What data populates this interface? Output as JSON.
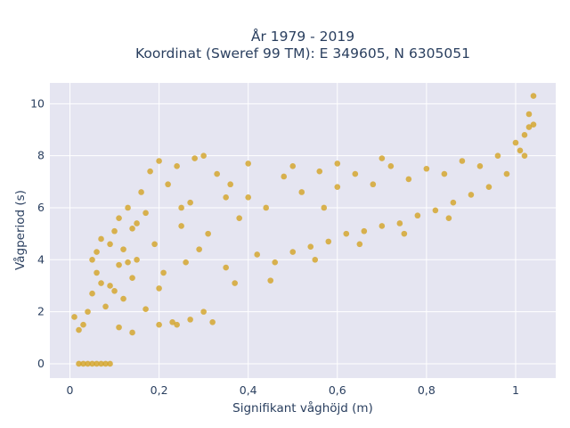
{
  "chart_data": {
    "type": "scatter",
    "title_lines": [
      "År 1979 - 2019",
      "Koordinat (Sweref 99 TM): E 349605, N 6305051"
    ],
    "xlabel": "Signifikant våghöjd (m)",
    "ylabel": "Vågperiod (s)",
    "xlim": [
      -0.045,
      1.09
    ],
    "ylim": [
      -0.55,
      10.8
    ],
    "x_ticks": [
      0,
      0.2,
      0.4,
      0.6,
      0.8,
      1
    ],
    "x_tick_labels": [
      "0",
      "0,2",
      "0,4",
      "0,6",
      "0,8",
      "1"
    ],
    "y_ticks": [
      0,
      2,
      4,
      6,
      8,
      10
    ],
    "y_tick_labels": [
      "0",
      "2",
      "4",
      "6",
      "8",
      "10"
    ],
    "grid": true,
    "legend": "none",
    "colors": {
      "marker": "#d4a21f",
      "plot_bg": "#e5e5f1",
      "grid": "#ffffff",
      "text": "#2a3f5f"
    },
    "series": [
      {
        "points": [
          [
            0.02,
            0
          ],
          [
            0.03,
            0
          ],
          [
            0.04,
            0
          ],
          [
            0.05,
            0
          ],
          [
            0.06,
            0
          ],
          [
            0.07,
            0
          ],
          [
            0.08,
            0
          ],
          [
            0.09,
            0
          ],
          [
            0.01,
            1.8
          ],
          [
            0.02,
            1.3
          ],
          [
            0.03,
            1.5
          ],
          [
            0.04,
            2.0
          ],
          [
            0.05,
            2.7
          ],
          [
            0.05,
            4.0
          ],
          [
            0.06,
            3.5
          ],
          [
            0.06,
            4.3
          ],
          [
            0.07,
            3.1
          ],
          [
            0.07,
            4.8
          ],
          [
            0.08,
            2.2
          ],
          [
            0.09,
            4.6
          ],
          [
            0.1,
            5.1
          ],
          [
            0.1,
            2.8
          ],
          [
            0.11,
            3.8
          ],
          [
            0.11,
            5.6
          ],
          [
            0.12,
            4.4
          ],
          [
            0.12,
            2.5
          ],
          [
            0.13,
            6.0
          ],
          [
            0.14,
            3.3
          ],
          [
            0.14,
            5.2
          ],
          [
            0.15,
            4.0
          ],
          [
            0.16,
            6.6
          ],
          [
            0.17,
            2.1
          ],
          [
            0.17,
            5.8
          ],
          [
            0.18,
            7.4
          ],
          [
            0.19,
            4.6
          ],
          [
            0.2,
            7.8
          ],
          [
            0.2,
            1.5
          ],
          [
            0.21,
            3.5
          ],
          [
            0.22,
            6.9
          ],
          [
            0.23,
            1.6
          ],
          [
            0.24,
            7.6
          ],
          [
            0.25,
            5.3
          ],
          [
            0.26,
            3.9
          ],
          [
            0.27,
            6.2
          ],
          [
            0.28,
            7.9
          ],
          [
            0.29,
            4.4
          ],
          [
            0.3,
            8.0
          ],
          [
            0.31,
            5.0
          ],
          [
            0.32,
            1.6
          ],
          [
            0.33,
            7.3
          ],
          [
            0.35,
            3.7
          ],
          [
            0.36,
            6.9
          ],
          [
            0.37,
            3.1
          ],
          [
            0.38,
            5.6
          ],
          [
            0.4,
            7.7
          ],
          [
            0.42,
            4.2
          ],
          [
            0.44,
            6.0
          ],
          [
            0.46,
            3.9
          ],
          [
            0.48,
            7.2
          ],
          [
            0.5,
            4.3
          ],
          [
            0.52,
            6.6
          ],
          [
            0.54,
            4.5
          ],
          [
            0.56,
            7.4
          ],
          [
            0.58,
            4.7
          ],
          [
            0.6,
            6.8
          ],
          [
            0.62,
            5.0
          ],
          [
            0.64,
            7.3
          ],
          [
            0.66,
            5.1
          ],
          [
            0.68,
            6.9
          ],
          [
            0.7,
            5.3
          ],
          [
            0.72,
            7.6
          ],
          [
            0.74,
            5.4
          ],
          [
            0.76,
            7.1
          ],
          [
            0.78,
            5.7
          ],
          [
            0.8,
            7.5
          ],
          [
            0.82,
            5.9
          ],
          [
            0.84,
            7.3
          ],
          [
            0.86,
            6.2
          ],
          [
            0.88,
            7.8
          ],
          [
            0.9,
            6.5
          ],
          [
            0.92,
            7.6
          ],
          [
            0.94,
            6.8
          ],
          [
            0.96,
            8.0
          ],
          [
            0.98,
            7.3
          ],
          [
            1.0,
            8.5
          ],
          [
            1.01,
            8.2
          ],
          [
            1.02,
            8.8
          ],
          [
            1.03,
            9.1
          ],
          [
            1.04,
            9.2
          ],
          [
            1.04,
            10.3
          ],
          [
            1.03,
            9.6
          ],
          [
            1.02,
            8.0
          ],
          [
            0.3,
            2.0
          ],
          [
            0.2,
            2.9
          ],
          [
            0.45,
            3.2
          ],
          [
            0.55,
            4.0
          ],
          [
            0.65,
            4.6
          ],
          [
            0.75,
            5.0
          ],
          [
            0.85,
            5.6
          ],
          [
            0.35,
            6.4
          ],
          [
            0.25,
            6.0
          ],
          [
            0.15,
            5.4
          ],
          [
            0.13,
            3.9
          ],
          [
            0.09,
            3.0
          ],
          [
            0.11,
            1.4
          ],
          [
            0.14,
            1.2
          ],
          [
            0.24,
            1.5
          ],
          [
            0.27,
            1.7
          ],
          [
            0.5,
            7.6
          ],
          [
            0.6,
            7.7
          ],
          [
            0.7,
            7.9
          ],
          [
            0.4,
            6.4
          ],
          [
            0.57,
            6.0
          ]
        ]
      }
    ]
  }
}
